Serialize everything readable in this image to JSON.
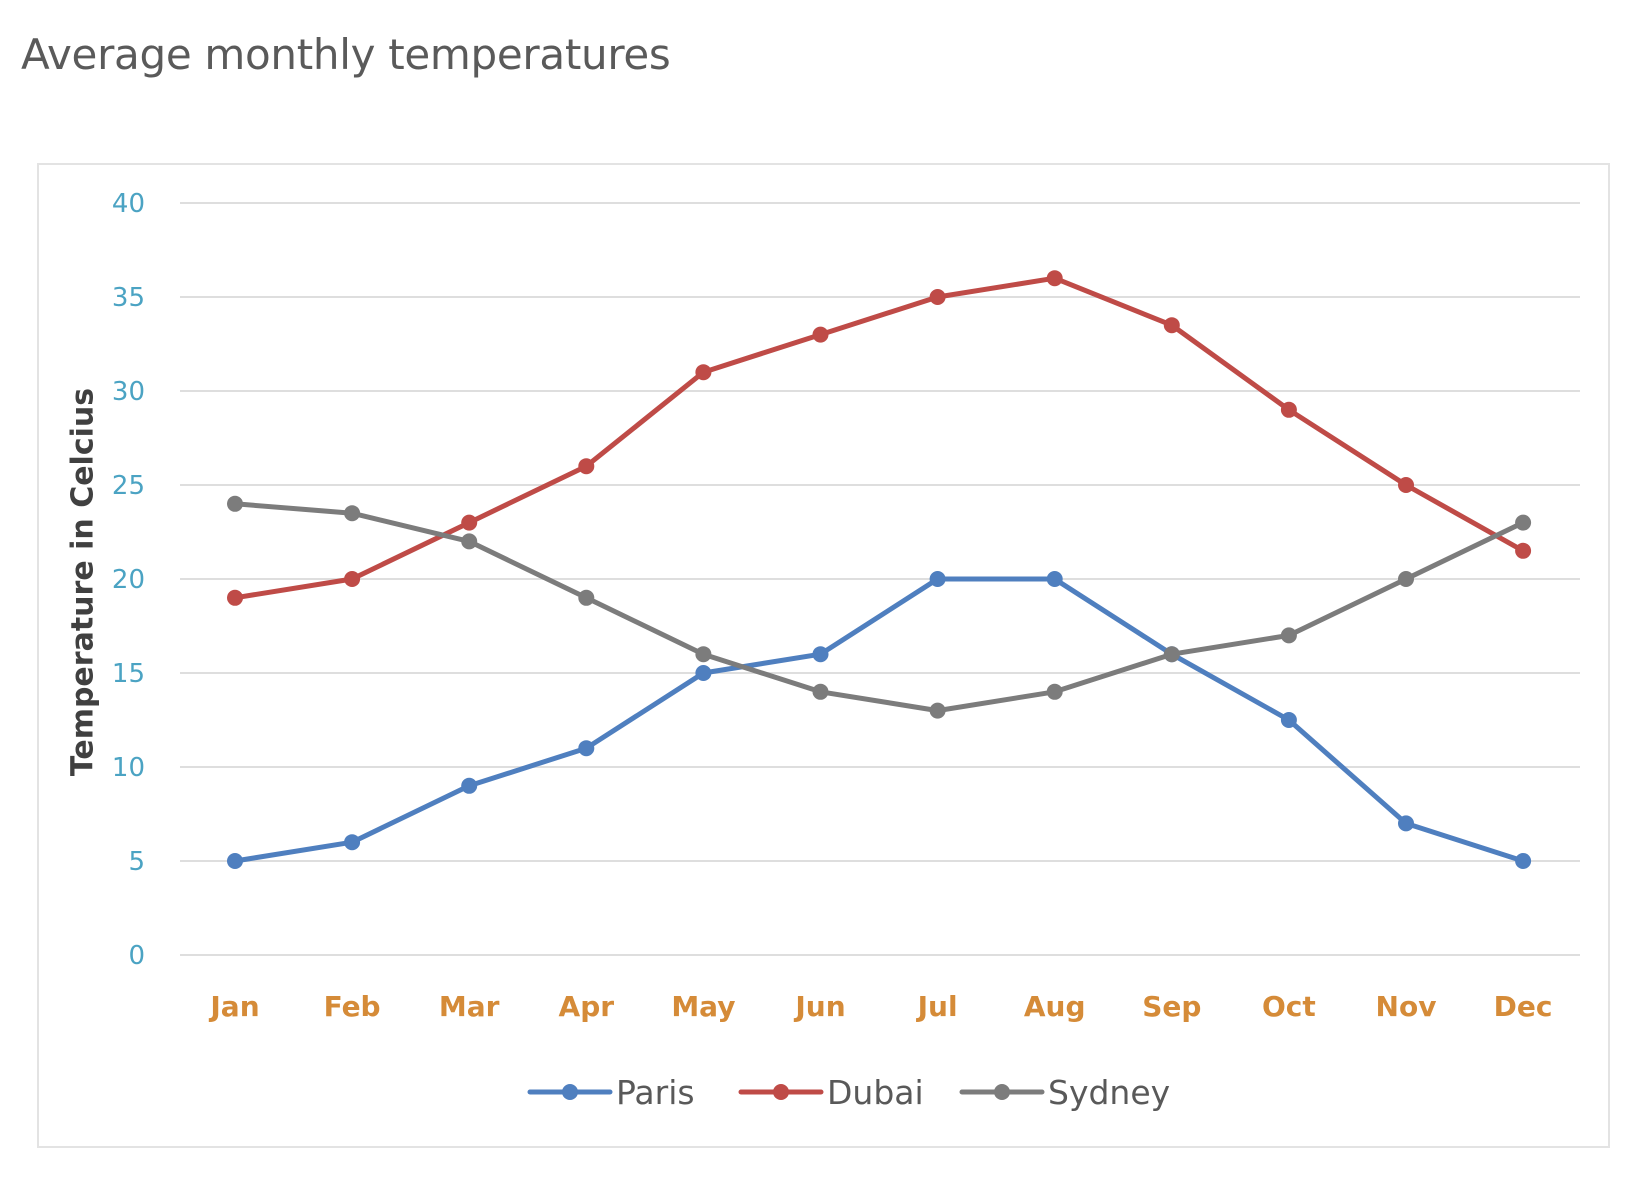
{
  "title": "Average monthly temperatures",
  "chart_data": {
    "type": "line",
    "title": "Average monthly temperatures",
    "xlabel": "",
    "ylabel": "Temperature in Celcius",
    "ylim": [
      0,
      40
    ],
    "yticks": [
      "0",
      "5",
      "10",
      "15",
      "20",
      "25",
      "30",
      "35",
      "40"
    ],
    "grid": true,
    "legend": "bottom",
    "categories": [
      "Jan",
      "Feb",
      "Mar",
      "Apr",
      "May",
      "Jun",
      "Jul",
      "Aug",
      "Sep",
      "Oct",
      "Nov",
      "Dec"
    ],
    "series": [
      {
        "name": "Paris",
        "color": "#4f7fbf",
        "values": [
          5,
          6,
          9,
          11,
          15,
          16,
          20,
          20,
          16,
          12.5,
          7,
          5
        ]
      },
      {
        "name": "Dubai",
        "color": "#bf4b47",
        "values": [
          19,
          20,
          23,
          26,
          31,
          33,
          35,
          36,
          33.5,
          29,
          25,
          21.5
        ]
      },
      {
        "name": "Sydney",
        "color": "#7c7c7c",
        "values": [
          24,
          23.5,
          22,
          19,
          16,
          14,
          13,
          14,
          16,
          17,
          20,
          23
        ]
      }
    ],
    "colors": {
      "grid": "#dedede",
      "ytick": "#4ba3c3",
      "xtick": "#d58b38",
      "ylabel": "#404040"
    }
  }
}
